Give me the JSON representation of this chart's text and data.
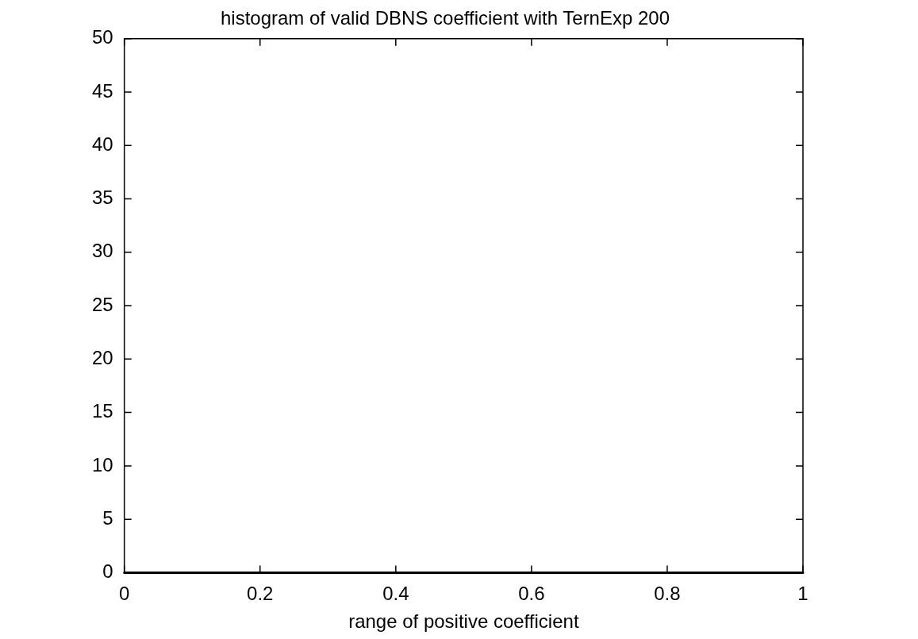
{
  "chart_data": {
    "type": "histogram",
    "title": "histogram of valid DBNS coefficient with TernExp 200",
    "xlabel": "range of positive coefficient",
    "bins": [
      0,
      1
    ],
    "values": [
      0
    ],
    "color": "#000000",
    "xlim": [
      0,
      1
    ],
    "xticks": [
      0,
      0.2,
      0.4,
      0.6,
      0.8,
      1
    ],
    "ylim": [
      0,
      50
    ],
    "yticks": [
      0,
      5,
      10,
      15,
      20,
      25,
      30,
      35,
      40,
      45,
      50
    ]
  }
}
